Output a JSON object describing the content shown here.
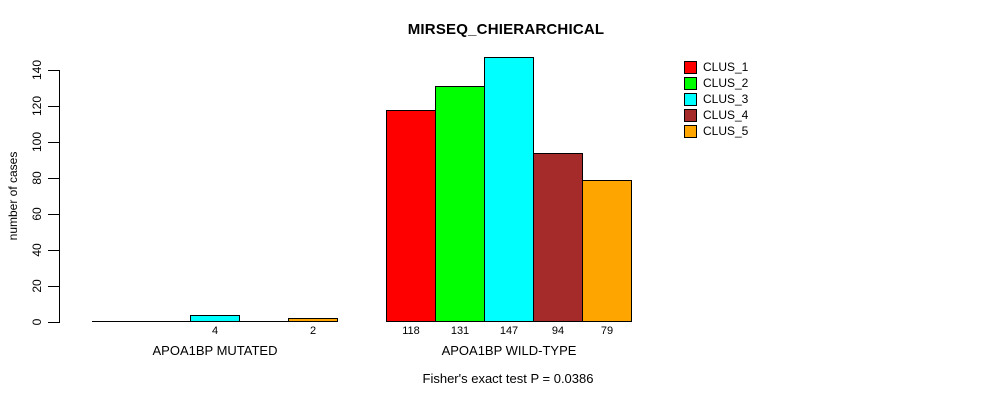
{
  "title": "MIRSEQ_CHIERARCHICAL",
  "footer": "Fisher's exact test P = 0.0386",
  "chart_data": {
    "type": "bar",
    "title": "MIRSEQ_CHIERARCHICAL",
    "ylabel": "number of cases",
    "xlabel": "",
    "ylim": [
      0,
      140
    ],
    "yticks": [
      0,
      20,
      40,
      60,
      80,
      100,
      120,
      140
    ],
    "grid": false,
    "legend_position": "topright",
    "series": [
      {
        "name": "CLUS_1",
        "color": "#FF0000"
      },
      {
        "name": "CLUS_2",
        "color": "#00FF00"
      },
      {
        "name": "CLUS_3",
        "color": "#00FFFF"
      },
      {
        "name": "CLUS_4",
        "color": "#A52A2A"
      },
      {
        "name": "CLUS_5",
        "color": "#FFA500"
      }
    ],
    "groups": [
      {
        "label": "APOA1BP MUTATED",
        "values": [
          0,
          0,
          4,
          0,
          2
        ]
      },
      {
        "label": "APOA1BP WILD-TYPE",
        "values": [
          118,
          131,
          147,
          94,
          79
        ]
      }
    ],
    "bar_value_labels_shown_only_when_nonzero": true,
    "annotation": "Fisher's exact test P = 0.0386"
  }
}
